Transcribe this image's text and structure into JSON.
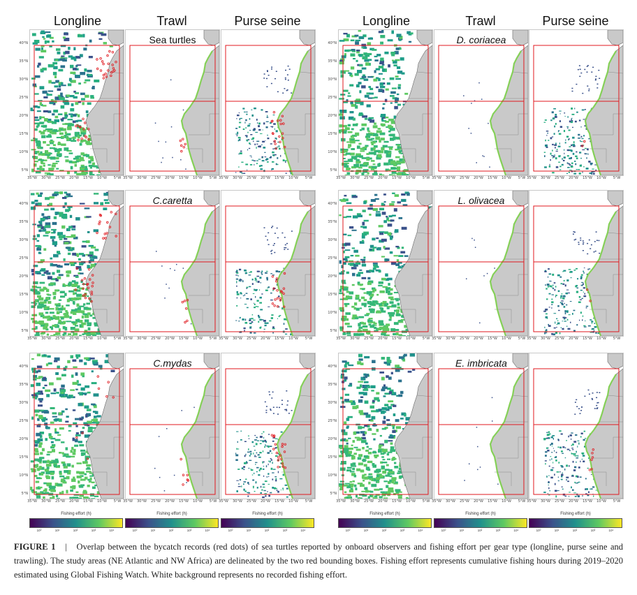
{
  "column_headers": [
    "Longline",
    "Trawl",
    "Purse seine",
    "Longline",
    "Trawl",
    "Purse seine"
  ],
  "species_labels": [
    "Sea turtles",
    "D. coriacea",
    "C.caretta",
    "L. olivacea",
    "C.mydas",
    "E. imbricata"
  ],
  "y_ticks": [
    "40°N",
    "35°N",
    "30°N",
    "25°N",
    "20°N",
    "15°N",
    "10°N",
    "5°N"
  ],
  "x_ticks": [
    "35°W",
    "30°W",
    "25°W",
    "20°W",
    "15°W",
    "10°W",
    "5°W"
  ],
  "colorbar": {
    "title": "Fishing effort (h)",
    "ticks": [
      "10⁰",
      "10¹",
      "10²",
      "10³",
      "10⁴"
    ],
    "gradient": [
      "#440154",
      "#3b528b",
      "#21918c",
      "#5ec962",
      "#fde725"
    ]
  },
  "caption": {
    "label": "FIGURE 1",
    "separator": "|",
    "text": "Overlap between the bycatch records (red dots) of sea turtles reported by onboard observers and fishing effort per gear type (longline, purse seine and trawling). The study areas (NE Atlantic and NW Africa) are delineated by the two red bounding boxes. Fishing effort represents cumulative fishing hours during 2019–2020 estimated using Global Fishing Watch. White background represents no recorded fishing effort."
  },
  "colors": {
    "land": "#c9c9c9",
    "bounding_box": "#e0191f",
    "bycatch": "#e0191f",
    "coast_effort": "#7fd34e"
  }
}
